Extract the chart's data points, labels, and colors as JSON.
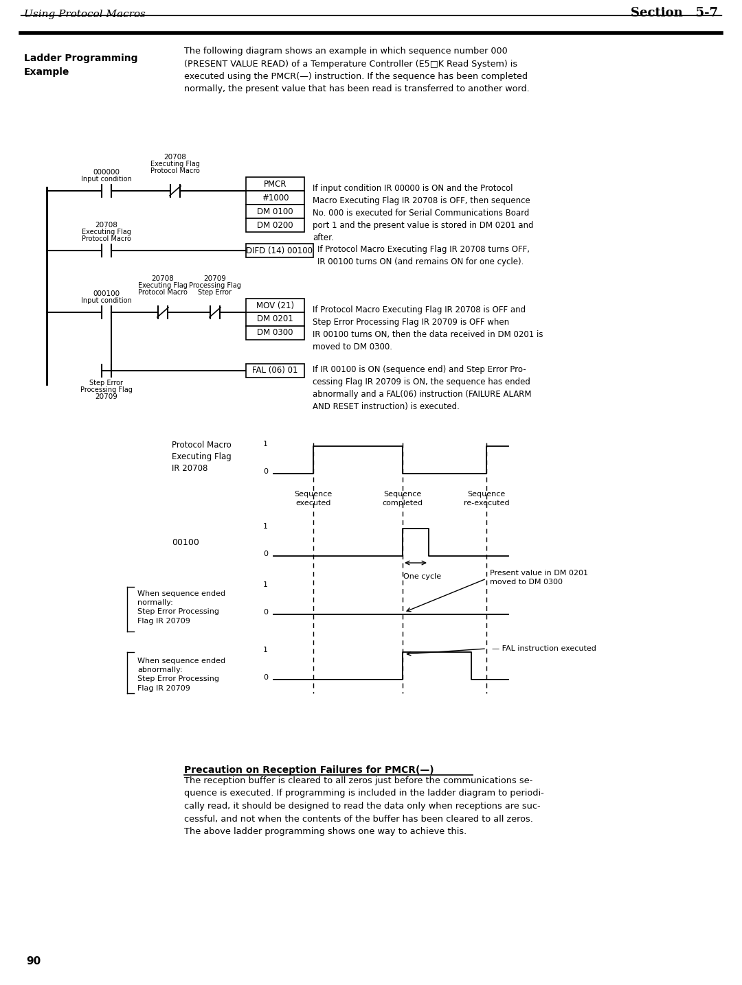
{
  "bg_color": "#ffffff",
  "header_title_left": "Using Protocol Macros",
  "header_title_right": "Section   5-7",
  "section_label": "Ladder Programming\nExample",
  "intro_text": "The following diagram shows an example in which sequence number 000\n(PRESENT VALUE READ) of a Temperature Controller (E5□K Read System) is\nexecuted using the PMCR(—) instruction. If the sequence has been completed\nnormally, the present value that has been read is transferred to another word.",
  "page_number": "90",
  "precaution_title": "Precaution on Reception Failures for PMCR(—)",
  "precaution_text": "The reception buffer is cleared to all zeros just before the communications se-\nquence is executed. If programming is included in the ladder diagram to periodi-\ncally read, it should be designed to read the data only when receptions are suc-\ncessful, and not when the contents of the buffer has been cleared to all zeros.\nThe above ladder programming shows one way to achieve this."
}
